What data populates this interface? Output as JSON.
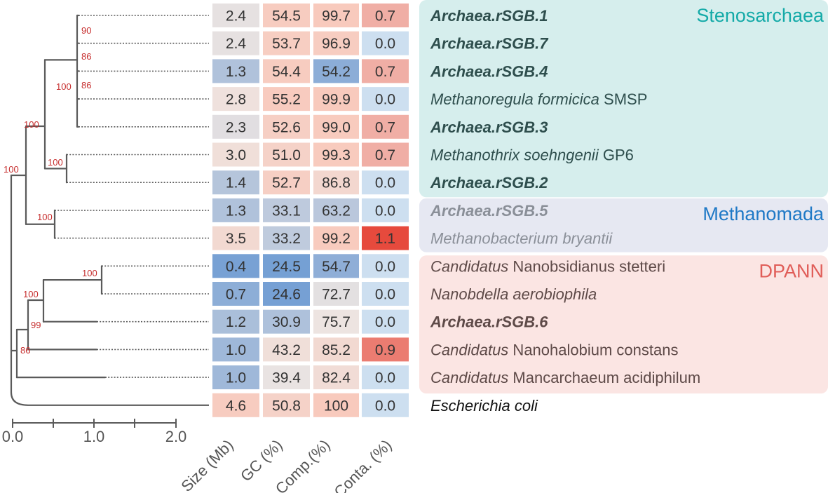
{
  "tree": {
    "axis": {
      "ticks": [
        "0.0",
        "1.0",
        "2.0"
      ]
    },
    "bootstrap": [
      "90",
      "86",
      "86",
      "100",
      "100",
      "100",
      "100",
      "100",
      "100",
      "100",
      "99",
      "86"
    ]
  },
  "table": {
    "column_headers": [
      "Size (Mb)",
      "GC (%)",
      "Comp.(%)",
      "Conta. (%)"
    ],
    "rows": [
      {
        "cells": [
          "2.4",
          "54.5",
          "99.7",
          "0.7"
        ],
        "parts": [
          {
            "text": "Archaea.rSGB.1",
            "style": "bi"
          }
        ]
      },
      {
        "cells": [
          "2.4",
          "53.7",
          "96.9",
          "0.0"
        ],
        "parts": [
          {
            "text": "Archaea.rSGB.7",
            "style": "bi"
          }
        ]
      },
      {
        "cells": [
          "1.3",
          "54.4",
          "54.2",
          "0.7"
        ],
        "parts": [
          {
            "text": "Archaea.rSGB.4",
            "style": "bi"
          }
        ]
      },
      {
        "cells": [
          "2.8",
          "55.2",
          "99.9",
          "0.0"
        ],
        "parts": [
          {
            "text": "Methanoregula formicica",
            "style": "i"
          },
          {
            "text": " SMSP",
            "style": "n"
          }
        ]
      },
      {
        "cells": [
          "2.3",
          "52.6",
          "99.0",
          "0.7"
        ],
        "parts": [
          {
            "text": "Archaea.rSGB.3",
            "style": "bi"
          }
        ]
      },
      {
        "cells": [
          "3.0",
          "51.0",
          "99.3",
          "0.7"
        ],
        "parts": [
          {
            "text": "Methanothrix soehngenii",
            "style": "i"
          },
          {
            "text": " GP6",
            "style": "n"
          }
        ]
      },
      {
        "cells": [
          "1.4",
          "52.7",
          "86.8",
          "0.0"
        ],
        "parts": [
          {
            "text": "Archaea.rSGB.2",
            "style": "bi"
          }
        ]
      },
      {
        "cells": [
          "1.3",
          "33.1",
          "63.2",
          "0.0"
        ],
        "parts": [
          {
            "text": "Archaea.rSGB.5",
            "style": "bi"
          }
        ]
      },
      {
        "cells": [
          "3.5",
          "33.2",
          "99.2",
          "1.1"
        ],
        "parts": [
          {
            "text": "Methanobacterium bryantii",
            "style": "i"
          }
        ]
      },
      {
        "cells": [
          "0.4",
          "24.5",
          "54.7",
          "0.0"
        ],
        "parts": [
          {
            "text": "Candidatus",
            "style": "i"
          },
          {
            "text": " Nanobsidianus stetteri",
            "style": "n"
          }
        ]
      },
      {
        "cells": [
          "0.7",
          "24.6",
          "72.7",
          "0.0"
        ],
        "parts": [
          {
            "text": "Nanobdella aerobiophila",
            "style": "i"
          }
        ]
      },
      {
        "cells": [
          "1.2",
          "30.9",
          "75.7",
          "0.0"
        ],
        "parts": [
          {
            "text": "Archaea.rSGB.6",
            "style": "bi"
          }
        ]
      },
      {
        "cells": [
          "1.0",
          "43.2",
          "85.2",
          "0.9"
        ],
        "parts": [
          {
            "text": "Candidatus",
            "style": "i"
          },
          {
            "text": " Nanohalobium constans",
            "style": "n"
          }
        ]
      },
      {
        "cells": [
          "1.0",
          "39.4",
          "82.4",
          "0.0"
        ],
        "parts": [
          {
            "text": "Candidatus",
            "style": "i"
          },
          {
            "text": " Mancarchaeum acidiphilum",
            "style": "n"
          }
        ]
      },
      {
        "cells": [
          "4.6",
          "50.8",
          "100",
          "0.0"
        ],
        "parts": [
          {
            "text": "Escherichia coli",
            "style": "i"
          }
        ]
      }
    ]
  },
  "groups": [
    {
      "name": "Stenosarchaea",
      "rows": [
        0,
        6
      ],
      "bg": "#d6eeed",
      "label_color": "#14aaa8",
      "text_color": "#2e4e4d"
    },
    {
      "name": "Methanomada",
      "rows": [
        7,
        8
      ],
      "bg": "#e6e8f2",
      "label_color": "#1f79c6",
      "text_color": "#8a8f98"
    },
    {
      "name": "DPANN",
      "rows": [
        9,
        13
      ],
      "bg": "#fbe5e3",
      "label_color": "#e05d58",
      "text_color": "#5e4a48"
    }
  ],
  "colors": {
    "tree_line": "#5a5a5a",
    "bootstrap_text": "#c62d2d",
    "outgroup_text": "#111111",
    "heat_blue": "#6d9bd3",
    "heat_mid": "#ede5e2",
    "heat_red": "#e64a3d",
    "cell_text": "#333333"
  }
}
